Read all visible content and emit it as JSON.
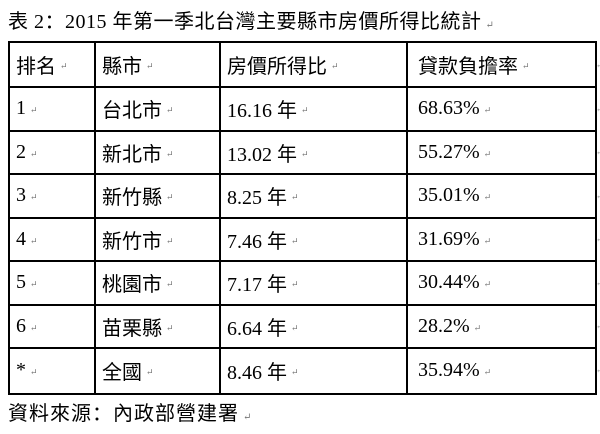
{
  "title": "表 2：2015 年第一季北台灣主要縣市房價所得比統計",
  "source": "資料來源：內政部營建署",
  "marks": {
    "end": "↵"
  },
  "table": {
    "headers": {
      "rank": "排名",
      "city": "縣市",
      "ratio": "房價所得比",
      "burden": "貸款負擔率"
    },
    "rows": [
      {
        "rank": "1",
        "city": "台北市",
        "ratio": "16.16 年",
        "burden": "68.63%"
      },
      {
        "rank": "2",
        "city": "新北市",
        "ratio": "13.02 年",
        "burden": "55.27%"
      },
      {
        "rank": "3",
        "city": "新竹縣",
        "ratio": "8.25 年",
        "burden": "35.01%"
      },
      {
        "rank": "4",
        "city": "新竹市",
        "ratio": "7.46 年",
        "burden": "31.69%"
      },
      {
        "rank": "5",
        "city": "桃園市",
        "ratio": "7.17 年",
        "burden": "30.44%"
      },
      {
        "rank": "6",
        "city": "苗栗縣",
        "ratio": "6.64 年",
        "burden": "28.2%"
      },
      {
        "rank": "*",
        "city": "全國",
        "ratio": "8.46 年",
        "burden": "35.94%"
      }
    ]
  },
  "chart_data": {
    "type": "table",
    "title": "表 2：2015 年第一季北台灣主要縣市房價所得比統計",
    "columns": [
      "排名",
      "縣市",
      "房價所得比",
      "貸款負擔率"
    ],
    "rows": [
      [
        "1",
        "台北市",
        "16.16 年",
        "68.63%"
      ],
      [
        "2",
        "新北市",
        "13.02 年",
        "55.27%"
      ],
      [
        "3",
        "新竹縣",
        "8.25 年",
        "35.01%"
      ],
      [
        "4",
        "新竹市",
        "7.46 年",
        "31.69%"
      ],
      [
        "5",
        "桃園市",
        "7.17 年",
        "30.44%"
      ],
      [
        "6",
        "苗栗縣",
        "6.64 年",
        "28.2%"
      ],
      [
        "*",
        "全國",
        "8.46 年",
        "35.94%"
      ]
    ],
    "source": "資料來源：內政部營建署"
  }
}
